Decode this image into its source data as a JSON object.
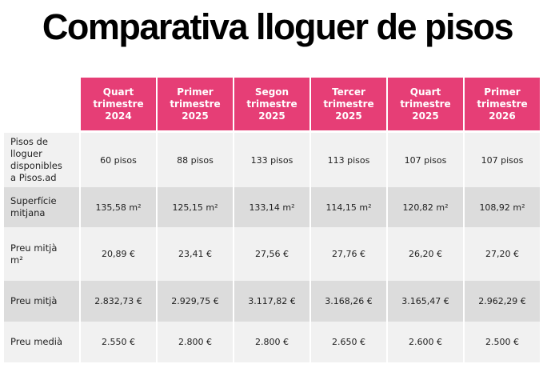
{
  "title": "Comparativa lloguer de pisos",
  "colors": {
    "header": "#e63e76",
    "row_light": "#f1f1f1",
    "row_dark": "#dcdcdc"
  },
  "columns": [
    [
      "Quart",
      "trimestre",
      "2024"
    ],
    [
      "Primer",
      "trimestre",
      "2025"
    ],
    [
      "Segon",
      "trimestre",
      "2025"
    ],
    [
      "Tercer",
      "trimestre",
      "2025"
    ],
    [
      "Quart",
      "trimestre",
      "2025"
    ],
    [
      "Primer",
      "trimestre",
      "2026"
    ]
  ],
  "rows": [
    {
      "label": [
        "Pisos de",
        "lloguer",
        "disponibles",
        "a Pisos.ad"
      ],
      "values": [
        "60 pisos",
        "88 pisos",
        "133 pisos",
        "113 pisos",
        "107 pisos",
        "107 pisos"
      ]
    },
    {
      "label": [
        "Superfície",
        "mitjana"
      ],
      "values": [
        "135,58 m²",
        "125,15 m²",
        "133,14 m²",
        "114,15 m²",
        "120,82 m²",
        "108,92 m²"
      ]
    },
    {
      "label": [
        "Preu mitjà",
        "m²"
      ],
      "values": [
        "20,89 €",
        "23,41 €",
        "27,56 €",
        "27,76 €",
        "26,20 €",
        "27,20 €"
      ]
    },
    {
      "label": [
        "Preu mitjà"
      ],
      "values": [
        "2.832,73 €",
        "2.929,75 €",
        "3.117,82 €",
        "3.168,26 €",
        "3.165,47 €",
        "2.962,29 €"
      ]
    },
    {
      "label": [
        "Preu medià"
      ],
      "values": [
        "2.550 €",
        "2.800 €",
        "2.800 €",
        "2.650 €",
        "2.600 €",
        "2.500 €"
      ]
    }
  ]
}
